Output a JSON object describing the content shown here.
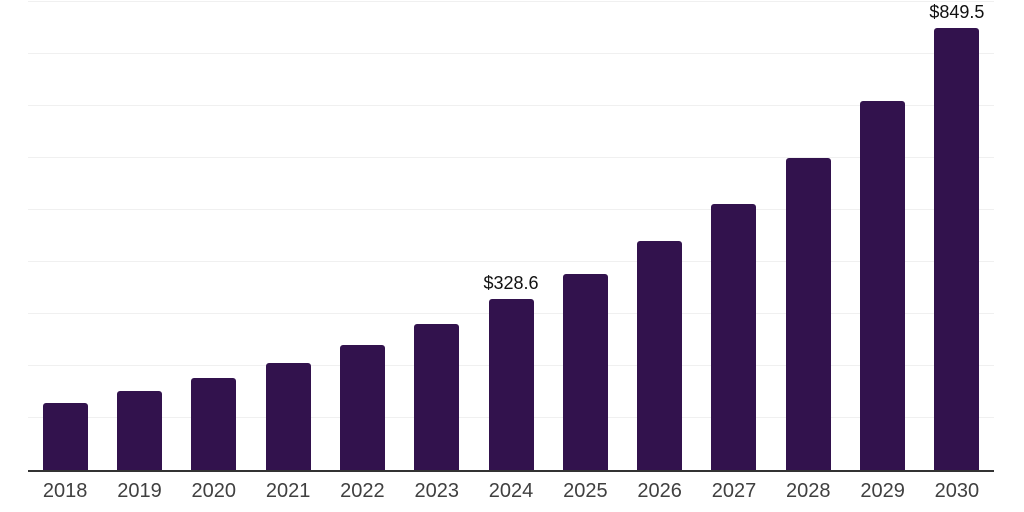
{
  "chart_data": {
    "type": "bar",
    "title": "",
    "xlabel": "",
    "ylabel": "",
    "categories": [
      "2018",
      "2019",
      "2020",
      "2021",
      "2022",
      "2023",
      "2024",
      "2025",
      "2026",
      "2027",
      "2028",
      "2029",
      "2030"
    ],
    "values": [
      128.8,
      151.8,
      176.8,
      205.6,
      240.2,
      280.6,
      328.6,
      378.0,
      440.0,
      511.1,
      599.5,
      709.1,
      849.5
    ],
    "bar_labels": {
      "2024": "$328.6",
      "2030": "$849.5"
    },
    "ylim": [
      0,
      900
    ],
    "y_scale_max": 904,
    "gridline_interval": 100,
    "grid": "horizontal-only",
    "legend_position": "none"
  },
  "colors": {
    "bar": "#32124D",
    "grid": "#F0F0F0",
    "axis": "#333333",
    "tick_label": "#404040",
    "data_label": "#111111",
    "background": "#FFFFFF"
  }
}
